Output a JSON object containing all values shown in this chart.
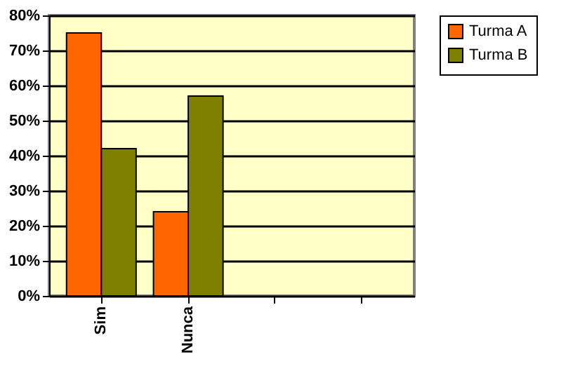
{
  "chart_data": {
    "type": "bar",
    "categories": [
      "Sim",
      "Nunca",
      null,
      null
    ],
    "series": [
      {
        "name": "Turma A",
        "color": "#ff6600",
        "values": [
          75,
          24,
          null,
          null
        ]
      },
      {
        "name": "Turma B",
        "color": "#808000",
        "values": [
          42,
          57,
          null,
          null
        ]
      }
    ],
    "ylim": [
      0,
      80
    ],
    "yticks": [
      {
        "value": 0,
        "label": "0%"
      },
      {
        "value": 10,
        "label": "10%"
      },
      {
        "value": 20,
        "label": "20%"
      },
      {
        "value": 30,
        "label": "30%"
      },
      {
        "value": 40,
        "label": "40%"
      },
      {
        "value": 50,
        "label": "50%"
      },
      {
        "value": 60,
        "label": "60%"
      },
      {
        "value": 70,
        "label": "70%"
      },
      {
        "value": 80,
        "label": "80%"
      }
    ],
    "grid": "y",
    "legend": "right"
  }
}
